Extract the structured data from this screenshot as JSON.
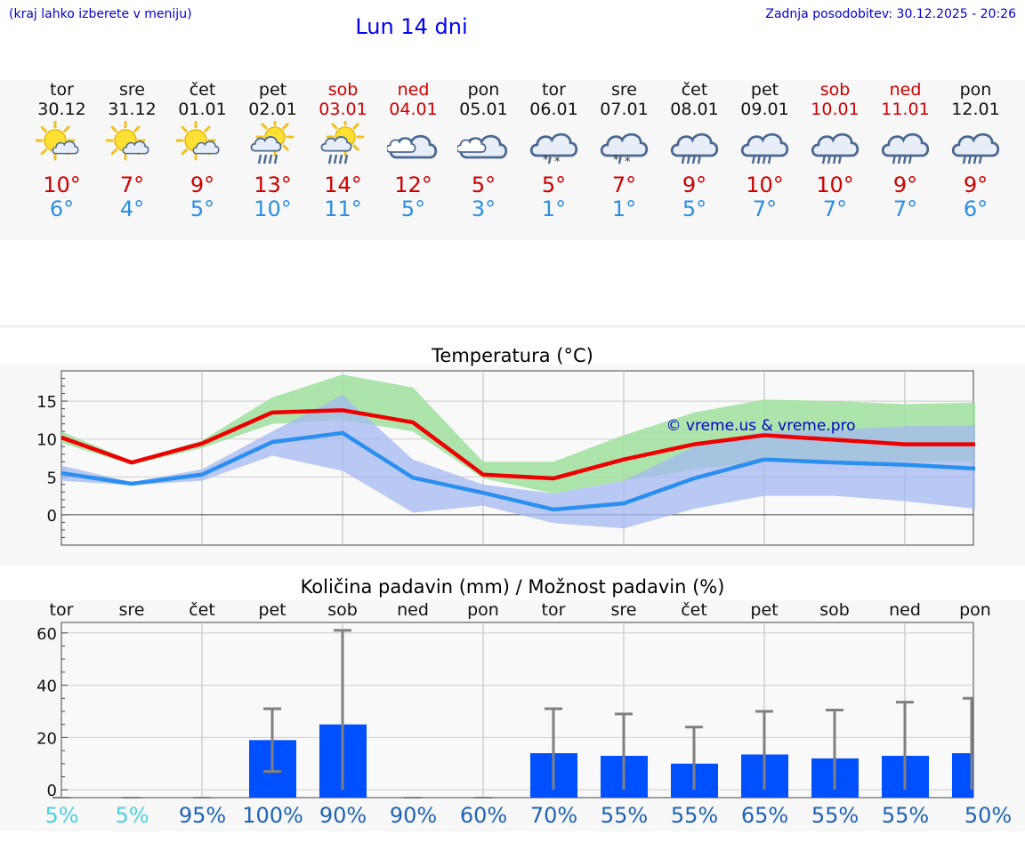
{
  "header": {
    "region_hint": "(kraj lahko izberete v meniju)",
    "title": "Lun 14 dni",
    "updated": "Zadnja posodobitev: 30.12.2025 - 20:26"
  },
  "days": [
    {
      "name": "tor",
      "date": "30.12",
      "weekend": false,
      "icon": "sun-cloud-icon",
      "tmax": "10°",
      "tmin": "6°"
    },
    {
      "name": "sre",
      "date": "31.12",
      "weekend": false,
      "icon": "sun-cloud-icon",
      "tmax": "7°",
      "tmin": "4°"
    },
    {
      "name": "čet",
      "date": "01.01",
      "weekend": false,
      "icon": "sun-cloud-icon",
      "tmax": "9°",
      "tmin": "5°"
    },
    {
      "name": "pet",
      "date": "02.01",
      "weekend": false,
      "icon": "sun-rain-icon",
      "tmax": "13°",
      "tmin": "10°"
    },
    {
      "name": "sob",
      "date": "03.01",
      "weekend": true,
      "icon": "sun-rain-icon",
      "tmax": "14°",
      "tmin": "11°"
    },
    {
      "name": "ned",
      "date": "04.01",
      "weekend": true,
      "icon": "cloud-icon",
      "tmax": "12°",
      "tmin": "5°"
    },
    {
      "name": "pon",
      "date": "05.01",
      "weekend": false,
      "icon": "cloud-icon",
      "tmax": "5°",
      "tmin": "3°"
    },
    {
      "name": "tor",
      "date": "06.01",
      "weekend": false,
      "icon": "sleet-icon",
      "tmax": "5°",
      "tmin": "1°"
    },
    {
      "name": "sre",
      "date": "07.01",
      "weekend": false,
      "icon": "sleet-icon",
      "tmax": "7°",
      "tmin": "1°"
    },
    {
      "name": "čet",
      "date": "08.01",
      "weekend": false,
      "icon": "cloud-rain-icon",
      "tmax": "9°",
      "tmin": "5°"
    },
    {
      "name": "pet",
      "date": "09.01",
      "weekend": false,
      "icon": "cloud-rain-icon",
      "tmax": "10°",
      "tmin": "7°"
    },
    {
      "name": "sob",
      "date": "10.01",
      "weekend": true,
      "icon": "cloud-rain-icon",
      "tmax": "10°",
      "tmin": "7°"
    },
    {
      "name": "ned",
      "date": "11.01",
      "weekend": true,
      "icon": "cloud-rain-icon",
      "tmax": "9°",
      "tmin": "7°"
    },
    {
      "name": "pon",
      "date": "12.01",
      "weekend": false,
      "icon": "cloud-rain-icon",
      "tmax": "9°",
      "tmin": "6°"
    }
  ],
  "colors": {
    "max": "#ee0000",
    "min": "#2b8ff0",
    "green_band": "#9fe09f",
    "blue_band": "#a4b8f0",
    "bar": "#0050ff",
    "whisker": "#808080"
  },
  "chart_data": [
    {
      "type": "line",
      "title": "Temperatura (°C)",
      "watermark": "© vreme.us & vreme.pro",
      "ylim": [
        -4,
        19
      ],
      "yticks": [
        0,
        5,
        10,
        15
      ],
      "x": [
        0,
        1,
        2,
        3,
        4,
        5,
        6,
        7,
        8,
        9,
        10,
        11,
        12,
        13
      ],
      "series": [
        {
          "name": "max",
          "values": [
            10.2,
            6.9,
            9.4,
            13.5,
            13.8,
            12.2,
            5.3,
            4.8,
            7.3,
            9.3,
            10.5,
            9.9,
            9.3,
            9.3
          ],
          "band": [
            [
              9.5,
              11
            ],
            [
              6.6,
              7.1
            ],
            [
              8.8,
              9.8
            ],
            [
              12,
              15.5
            ],
            [
              12.5,
              18.5
            ],
            [
              11,
              16.8
            ],
            [
              4.8,
              7
            ],
            [
              2.8,
              7
            ],
            [
              4.5,
              10.5
            ],
            [
              6,
              13.5
            ],
            [
              7,
              15.2
            ],
            [
              7,
              15
            ],
            [
              7,
              14.6
            ],
            [
              7,
              14.8
            ]
          ]
        },
        {
          "name": "min",
          "values": [
            5.5,
            4.1,
            5.3,
            9.6,
            10.8,
            4.9,
            2.9,
            0.7,
            1.5,
            4.8,
            7.3,
            6.9,
            6.6,
            6.1
          ],
          "band": [
            [
              4.5,
              6.5
            ],
            [
              3.9,
              4.3
            ],
            [
              4.5,
              6
            ],
            [
              7.8,
              11
            ],
            [
              5.8,
              15.8
            ],
            [
              0.3,
              7.3
            ],
            [
              1.2,
              4
            ],
            [
              -1.1,
              2.8
            ],
            [
              -1.8,
              4.5
            ],
            [
              0.8,
              9
            ],
            [
              2.5,
              11
            ],
            [
              2.5,
              11.2
            ],
            [
              1.8,
              11.7
            ],
            [
              0.8,
              11.8
            ]
          ]
        }
      ]
    },
    {
      "type": "bar",
      "title": "Količina padavin (mm) / Možnost padavin (%)",
      "ylim": [
        -3,
        64
      ],
      "yticks": [
        0,
        20,
        40,
        60
      ],
      "categories": [
        "tor",
        "sre",
        "čet",
        "pet",
        "sob",
        "ned",
        "pon",
        "tor",
        "sre",
        "čet",
        "pet",
        "sob",
        "ned",
        "pon"
      ],
      "values": [
        0,
        0,
        0,
        19,
        25,
        0,
        0,
        14,
        13,
        10,
        13.5,
        12,
        13,
        14
      ],
      "whisker": [
        [
          0,
          0
        ],
        [
          0,
          0
        ],
        [
          0,
          0
        ],
        [
          7,
          31
        ],
        [
          0,
          61
        ],
        [
          0,
          0
        ],
        [
          0,
          0
        ],
        [
          0,
          31
        ],
        [
          0,
          29
        ],
        [
          0,
          24
        ],
        [
          0,
          30
        ],
        [
          0,
          30.5
        ],
        [
          0,
          33.5
        ],
        [
          0,
          35
        ]
      ],
      "probability": [
        "5%",
        "5%",
        "95%",
        "100%",
        "90%",
        "90%",
        "60%",
        "70%",
        "55%",
        "55%",
        "65%",
        "55%",
        "55%",
        "50%"
      ],
      "probability_colors": [
        "#4dd0e0",
        "#4dd0e0",
        "#1e64b4",
        "#1e64b4",
        "#1e64b4",
        "#1e64b4",
        "#1e64b4",
        "#1e64b4",
        "#1e64b4",
        "#1e64b4",
        "#1e64b4",
        "#1e64b4",
        "#1e64b4",
        "#1e64b4"
      ]
    }
  ]
}
